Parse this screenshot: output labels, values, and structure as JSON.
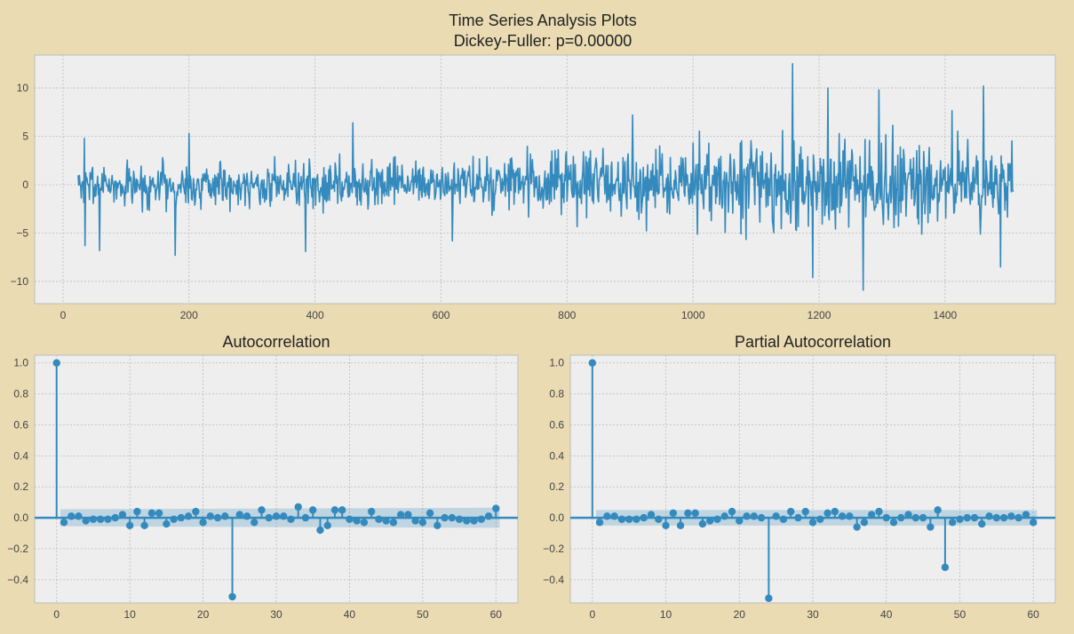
{
  "figure": {
    "suptitle_line1": "Time Series Analysis Plots",
    "suptitle_line2": "Dickey-Fuller: p=0.00000"
  },
  "colors": {
    "figure_bg": "#EADBB3",
    "axes_bg": "#EEEEEE",
    "grid": "#BCBCBC",
    "series": "#348ABD",
    "conf_band": "#348ABD"
  },
  "chart_data": [
    {
      "id": "timeseries",
      "type": "line",
      "title": "",
      "xlabel": "",
      "ylabel": "",
      "xlim": [
        -45,
        1575
      ],
      "ylim": [
        -12.3,
        13.4
      ],
      "xticks": [
        0,
        200,
        400,
        600,
        800,
        1000,
        1200,
        1400
      ],
      "yticks": [
        -10,
        -5,
        0,
        5,
        10
      ],
      "grid": true,
      "x_range": [
        24,
        1508
      ],
      "noise_seed": 7,
      "volatility_regimes": [
        {
          "x_start": 24,
          "x_end": 700,
          "std": 1.6
        },
        {
          "x_start": 700,
          "x_end": 1000,
          "std": 2.1
        },
        {
          "x_start": 1000,
          "x_end": 1508,
          "std": 3.0
        }
      ],
      "notable_points": [
        {
          "x": 34,
          "y": 4.8
        },
        {
          "x": 35,
          "y": -6.3
        },
        {
          "x": 58,
          "y": -6.8
        },
        {
          "x": 178,
          "y": -7.3
        },
        {
          "x": 200,
          "y": 5.3
        },
        {
          "x": 385,
          "y": -6.9
        },
        {
          "x": 460,
          "y": 6.4
        },
        {
          "x": 618,
          "y": -5.8
        },
        {
          "x": 904,
          "y": 7.2
        },
        {
          "x": 1158,
          "y": 12.5
        },
        {
          "x": 1190,
          "y": -9.6
        },
        {
          "x": 1214,
          "y": 10.0
        },
        {
          "x": 1270,
          "y": -10.9
        },
        {
          "x": 1295,
          "y": 9.8
        },
        {
          "x": 1461,
          "y": 10.2
        },
        {
          "x": 1488,
          "y": -8.5
        }
      ]
    },
    {
      "id": "acf",
      "type": "scatter",
      "title": "Autocorrelation",
      "xlabel": "",
      "ylabel": "",
      "xlim": [
        -3,
        63
      ],
      "ylim": [
        -0.55,
        1.05
      ],
      "xticks": [
        0,
        10,
        20,
        30,
        40,
        50,
        60
      ],
      "yticks": [
        -0.4,
        -0.2,
        0.0,
        0.2,
        0.4,
        0.6,
        0.8,
        1.0
      ],
      "grid": true,
      "lags": [
        0,
        1,
        2,
        3,
        4,
        5,
        6,
        7,
        8,
        9,
        10,
        11,
        12,
        13,
        14,
        15,
        16,
        17,
        18,
        19,
        20,
        21,
        22,
        23,
        24,
        25,
        26,
        27,
        28,
        29,
        30,
        31,
        32,
        33,
        34,
        35,
        36,
        37,
        38,
        39,
        40,
        41,
        42,
        43,
        44,
        45,
        46,
        47,
        48,
        49,
        50,
        51,
        52,
        53,
        54,
        55,
        56,
        57,
        58,
        59,
        60
      ],
      "values": [
        1.0,
        -0.03,
        0.01,
        0.01,
        -0.02,
        -0.01,
        -0.01,
        -0.01,
        0.0,
        0.02,
        -0.05,
        0.04,
        -0.05,
        0.03,
        0.03,
        -0.04,
        -0.01,
        0.0,
        0.01,
        0.04,
        -0.03,
        0.01,
        0.0,
        0.01,
        -0.51,
        0.02,
        0.01,
        -0.03,
        0.05,
        0.0,
        0.01,
        0.01,
        -0.01,
        0.07,
        0.0,
        0.05,
        -0.08,
        -0.05,
        0.05,
        0.05,
        -0.01,
        -0.02,
        -0.03,
        0.04,
        -0.01,
        -0.02,
        -0.03,
        0.02,
        0.02,
        -0.02,
        -0.03,
        0.03,
        -0.05,
        0.0,
        0.0,
        -0.01,
        -0.02,
        -0.02,
        -0.01,
        0.01,
        0.06
      ],
      "conf_band": {
        "lower": -0.055,
        "upper": 0.055,
        "lower_end": -0.065,
        "upper_end": 0.065
      }
    },
    {
      "id": "pacf",
      "type": "scatter",
      "title": "Partial Autocorrelation",
      "xlabel": "",
      "ylabel": "",
      "xlim": [
        -3,
        63
      ],
      "ylim": [
        -0.55,
        1.05
      ],
      "xticks": [
        0,
        10,
        20,
        30,
        40,
        50,
        60
      ],
      "yticks": [
        -0.4,
        -0.2,
        0.0,
        0.2,
        0.4,
        0.6,
        0.8,
        1.0
      ],
      "grid": true,
      "lags": [
        0,
        1,
        2,
        3,
        4,
        5,
        6,
        7,
        8,
        9,
        10,
        11,
        12,
        13,
        14,
        15,
        16,
        17,
        18,
        19,
        20,
        21,
        22,
        23,
        24,
        25,
        26,
        27,
        28,
        29,
        30,
        31,
        32,
        33,
        34,
        35,
        36,
        37,
        38,
        39,
        40,
        41,
        42,
        43,
        44,
        45,
        46,
        47,
        48,
        49,
        50,
        51,
        52,
        53,
        54,
        55,
        56,
        57,
        58,
        59,
        60
      ],
      "values": [
        1.0,
        -0.03,
        0.01,
        0.01,
        -0.01,
        -0.01,
        -0.01,
        0.0,
        0.02,
        -0.01,
        -0.05,
        0.03,
        -0.05,
        0.03,
        0.03,
        -0.04,
        -0.02,
        -0.01,
        0.01,
        0.04,
        -0.02,
        0.01,
        0.01,
        0.0,
        -0.52,
        0.01,
        -0.01,
        0.04,
        0.0,
        0.04,
        -0.03,
        -0.01,
        0.03,
        0.04,
        0.01,
        0.01,
        -0.06,
        -0.03,
        0.02,
        0.04,
        0.0,
        -0.03,
        0.0,
        0.02,
        0.0,
        0.0,
        -0.06,
        0.05,
        -0.32,
        -0.03,
        -0.01,
        0.0,
        0.0,
        -0.04,
        0.01,
        0.0,
        0.0,
        0.01,
        0.0,
        0.02,
        -0.03
      ],
      "conf_band": {
        "lower": -0.05,
        "upper": 0.05,
        "lower_end": -0.05,
        "upper_end": 0.05
      }
    }
  ]
}
